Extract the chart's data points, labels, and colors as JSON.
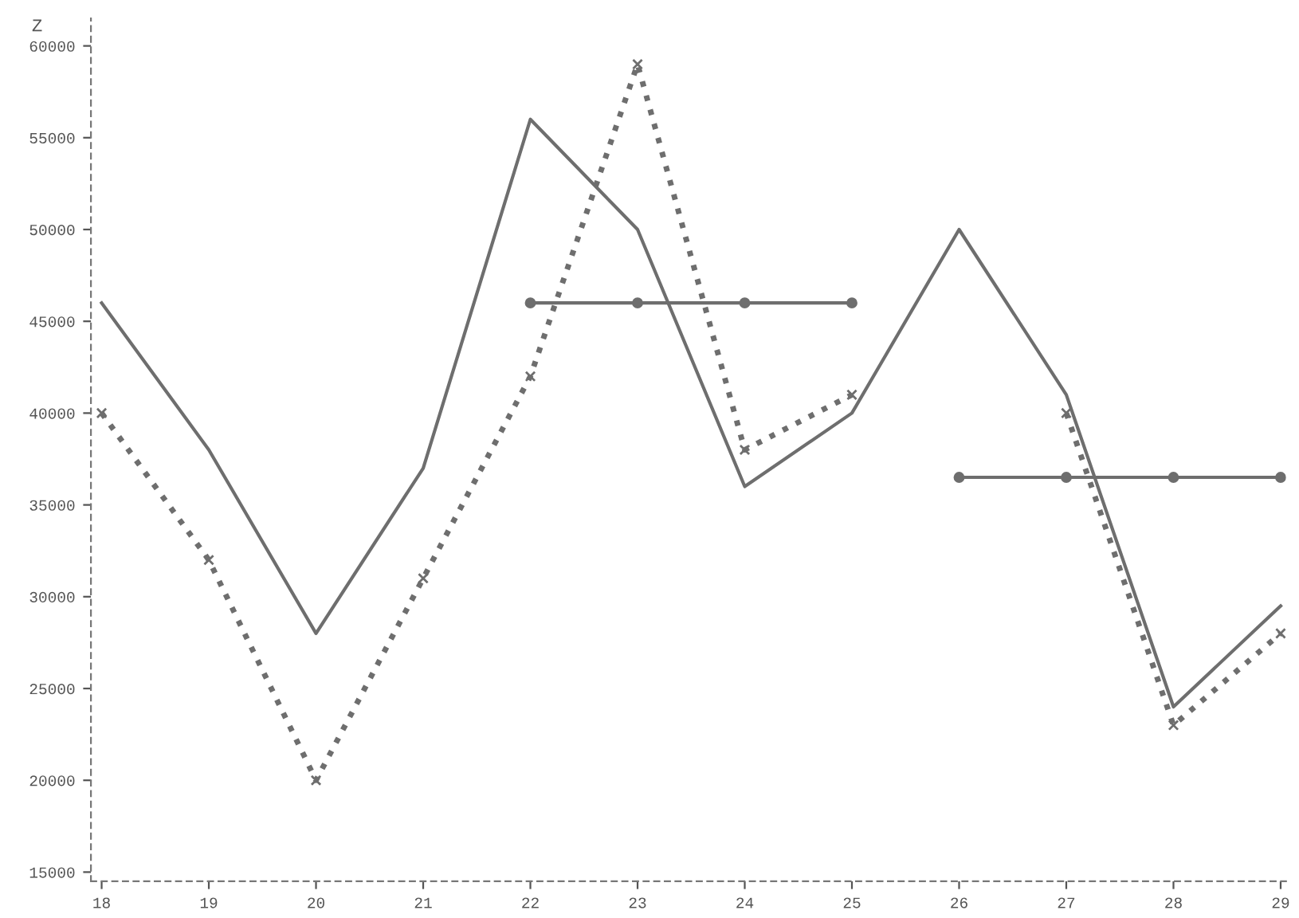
{
  "chart_data": {
    "type": "line",
    "ylabel": "Z",
    "x": [
      18,
      19,
      20,
      21,
      22,
      23,
      24,
      25,
      26,
      27,
      28,
      29
    ],
    "series": [
      {
        "color": "#6e6e6e",
        "line_style": "solid",
        "marker": "none",
        "values": [
          46000,
          38000,
          28000,
          37000,
          56000,
          50000,
          36000,
          40000,
          50000,
          41000,
          24000,
          29500
        ]
      },
      {
        "color": "#6e6e6e",
        "line_style": "dotted",
        "marker": "cross",
        "values": [
          40000,
          32000,
          20000,
          31000,
          42000,
          59000,
          38000,
          41000,
          null,
          40000,
          23000,
          28000
        ]
      },
      {
        "color": "#6e6e6e",
        "line_style": "solid",
        "marker": "circle",
        "values": [
          null,
          null,
          null,
          null,
          46000,
          46000,
          46000,
          46000,
          null,
          null,
          null,
          null
        ]
      },
      {
        "color": "#6e6e6e",
        "line_style": "solid",
        "marker": "circle",
        "values": [
          null,
          null,
          null,
          null,
          null,
          null,
          null,
          null,
          36500,
          36500,
          36500,
          36500
        ]
      }
    ],
    "xlim": [
      17.9,
      29.05
    ],
    "ylim": [
      14500,
      61500
    ],
    "xticks": [
      18,
      19,
      20,
      21,
      22,
      23,
      24,
      25,
      26,
      27,
      28,
      29
    ],
    "yticks": [
      15000,
      20000,
      25000,
      30000,
      35000,
      40000,
      45000,
      50000,
      55000,
      60000
    ],
    "grid": false,
    "legend": false
  }
}
